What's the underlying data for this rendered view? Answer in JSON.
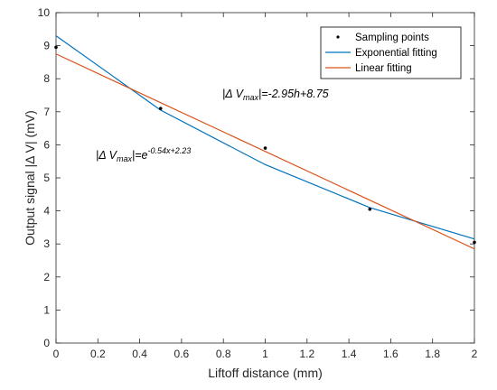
{
  "chart_data": {
    "type": "line",
    "xlabel": "Liftoff distance (mm)",
    "ylabel": "Output signal |Δ V| (mV)",
    "xlim": [
      0,
      2
    ],
    "ylim": [
      0,
      10
    ],
    "xticks": [
      "0",
      "0.2",
      "0.4",
      "0.6",
      "0.8",
      "1",
      "1.2",
      "1.4",
      "1.6",
      "1.8",
      "2"
    ],
    "yticks": [
      "0",
      "1",
      "2",
      "3",
      "4",
      "5",
      "6",
      "7",
      "8",
      "9",
      "10"
    ],
    "grid": false,
    "legend_position": "top-right",
    "series": [
      {
        "name": "Sampling points",
        "kind": "scatter",
        "color": "#000000",
        "x": [
          0,
          0.5,
          1.0,
          1.5,
          2.0
        ],
        "y": [
          8.95,
          7.1,
          5.9,
          4.05,
          3.05
        ]
      },
      {
        "name": "Exponential fitting",
        "kind": "line",
        "color": "#0072BD",
        "x": [
          0,
          0.5,
          1.0,
          1.5,
          2.0
        ],
        "y": [
          9.3,
          7.05,
          5.4,
          4.1,
          3.15
        ]
      },
      {
        "name": "Linear fitting",
        "kind": "line",
        "color": "#D95319",
        "x": [
          0,
          2.0
        ],
        "y": [
          8.75,
          2.85
        ]
      }
    ],
    "annotations": [
      {
        "id": "linear",
        "pre": "|Δ V",
        "sub": "max",
        "post": "|=-2.95h+8.75"
      },
      {
        "id": "exp",
        "pre": "|Δ V",
        "sub": "max",
        "mid": "|=e",
        "sup": "-0.54x+2.23"
      }
    ]
  }
}
